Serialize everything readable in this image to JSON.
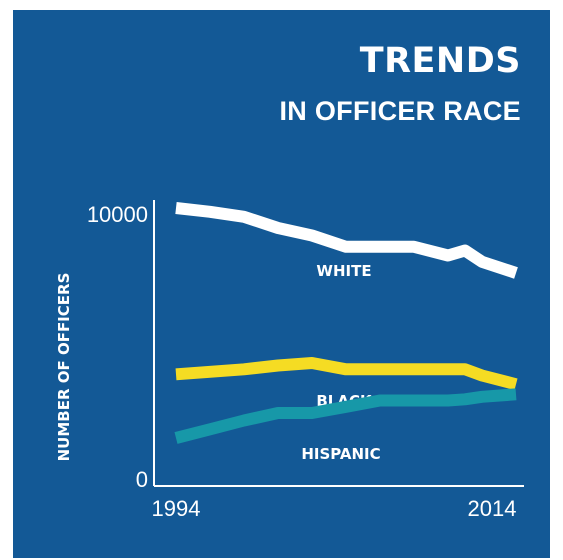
{
  "title": "TRENDS",
  "subtitle": "IN OFFICER RACE",
  "colors": {
    "background": "#135996",
    "axis": "#ffffff"
  },
  "chart_data": {
    "type": "line",
    "title": "TRENDS",
    "subtitle": "IN OFFICER RACE",
    "xlabel": "",
    "ylabel": "NUMBER OF OFFICERS",
    "xlim": [
      1994,
      2014
    ],
    "ylim": [
      0,
      10000
    ],
    "x_ticks": [
      "1994",
      "2014"
    ],
    "y_ticks": [
      "10000",
      "0"
    ],
    "grid": false,
    "legend": "none",
    "x": [
      1994,
      1996,
      1998,
      2000,
      2002,
      2004,
      2006,
      2008,
      2010,
      2011,
      2012,
      2014
    ],
    "series": [
      {
        "name": "WHITE",
        "color": "#ffffff",
        "values": [
          10000,
          9850,
          9650,
          9200,
          8900,
          8450,
          8450,
          8450,
          8100,
          8300,
          7850,
          7400
        ]
      },
      {
        "name": "BLACK",
        "color": "#f5dc23",
        "values": [
          3350,
          3450,
          3550,
          3700,
          3800,
          3550,
          3550,
          3550,
          3550,
          3550,
          3300,
          2950
        ]
      },
      {
        "name": "HISPANIC",
        "color": "#1798a8",
        "values": [
          800,
          1150,
          1500,
          1800,
          1800,
          2050,
          2300,
          2300,
          2300,
          2350,
          2450,
          2550
        ]
      }
    ]
  }
}
